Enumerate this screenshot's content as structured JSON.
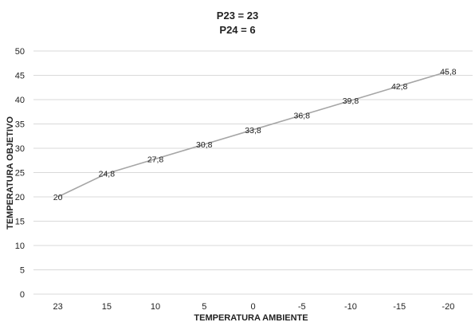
{
  "chart_data": {
    "type": "line",
    "title_lines": [
      "P23 = 23",
      "P24 = 6"
    ],
    "xlabel": "TEMPERATURA AMBIENTE",
    "ylabel": "TEMPERATURA OBJETIVO",
    "categories": [
      "23",
      "15",
      "10",
      "5",
      "0",
      "-5",
      "-10",
      "-15",
      "-20"
    ],
    "series": [
      {
        "values": [
          20,
          24.8,
          27.8,
          30.8,
          33.8,
          36.8,
          39.8,
          42.8,
          45.8
        ],
        "data_labels": [
          "20",
          "24,8",
          "27,8",
          "30,8",
          "33,8",
          "36,8",
          "39,8",
          "42,8",
          "45,8"
        ]
      }
    ],
    "ylim": [
      0,
      50
    ],
    "yticks": [
      0,
      5,
      10,
      15,
      20,
      25,
      30,
      35,
      40,
      45,
      50
    ],
    "grid": true,
    "legend": "none",
    "colors": {
      "line": "#a6a6a6",
      "grid": "#d9d9d9",
      "text": "#222222"
    }
  }
}
